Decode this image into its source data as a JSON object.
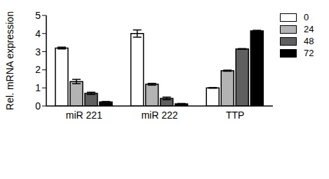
{
  "chart_data": {
    "type": "bar",
    "y_label": "Rel. mRNA expression",
    "categories": [
      "miR 221",
      "miR 222",
      "TTP"
    ],
    "ylim": [
      0,
      5
    ],
    "yticks": [
      0,
      1,
      2,
      3,
      4,
      5
    ],
    "grid": false,
    "legend": "upper right",
    "series": [
      {
        "name": "0",
        "color": "#ffffff",
        "values": [
          3.2,
          4.0,
          1.0
        ],
        "errors": [
          0.05,
          0.2,
          0.02
        ]
      },
      {
        "name": "24",
        "color": "#b3b3b3",
        "values": [
          1.35,
          1.2,
          1.95
        ],
        "errors": [
          0.12,
          0.05,
          0.03
        ]
      },
      {
        "name": "48",
        "color": "#5f5f5f",
        "values": [
          0.7,
          0.42,
          3.15
        ],
        "errors": [
          0.06,
          0.07,
          0.02
        ]
      },
      {
        "name": "72",
        "color": "#000000",
        "values": [
          0.22,
          0.12,
          4.15
        ],
        "errors": [
          0.03,
          0.02,
          0.03
        ]
      }
    ]
  }
}
